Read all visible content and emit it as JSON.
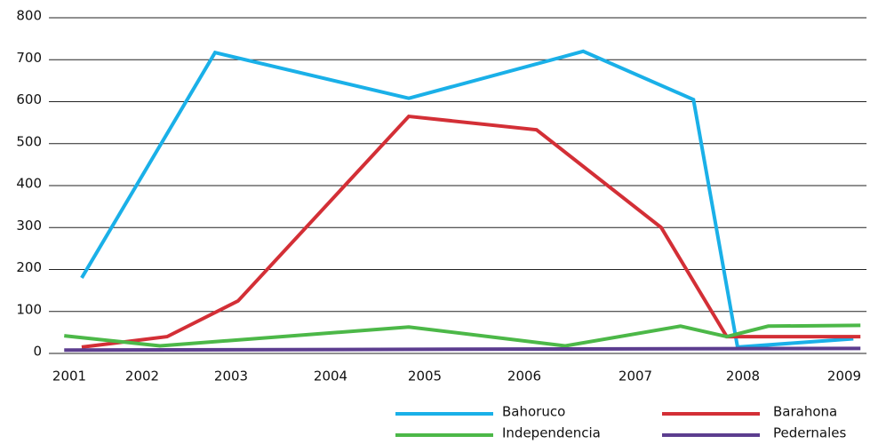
{
  "chart_data": {
    "type": "line",
    "xlim": [
      2000.72,
      2009.22
    ],
    "xticks": [
      2001,
      2002,
      2003,
      2004,
      2005,
      2006,
      2007,
      2008,
      2009
    ],
    "ylim": [
      0,
      800
    ],
    "yticks": [
      0,
      100,
      200,
      300,
      400,
      500,
      600,
      700,
      800
    ],
    "grid": true,
    "legend": "bottom",
    "series": [
      {
        "name": "Bahoruco",
        "color": "#1ab0e8",
        "x": [
          2001.17,
          2002.82,
          2004.83,
          2006.53,
          2007.54,
          2007.95,
          2009.09
        ],
        "values": [
          180,
          717,
          608,
          720,
          605,
          15,
          35
        ]
      },
      {
        "name": "Barahona",
        "color": "#d32f36",
        "x": [
          2001.17,
          2002.28,
          2003.07,
          2004.83,
          2006.11,
          2007.24,
          2007.85,
          2009.16
        ],
        "values": [
          15,
          40,
          125,
          565,
          533,
          300,
          40,
          40
        ]
      },
      {
        "name": "Independencia",
        "color": "#4cb848",
        "x": [
          2000.93,
          2002.2,
          2004.83,
          2006.37,
          2007.42,
          2007.85,
          2008.25,
          2009.16
        ],
        "values": [
          42,
          18,
          63,
          18,
          65,
          40,
          65,
          67
        ]
      },
      {
        "name": "Pedernales",
        "color": "#5c3d8f",
        "x": [
          2000.93,
          2009.16
        ],
        "values": [
          8,
          12
        ]
      }
    ]
  }
}
